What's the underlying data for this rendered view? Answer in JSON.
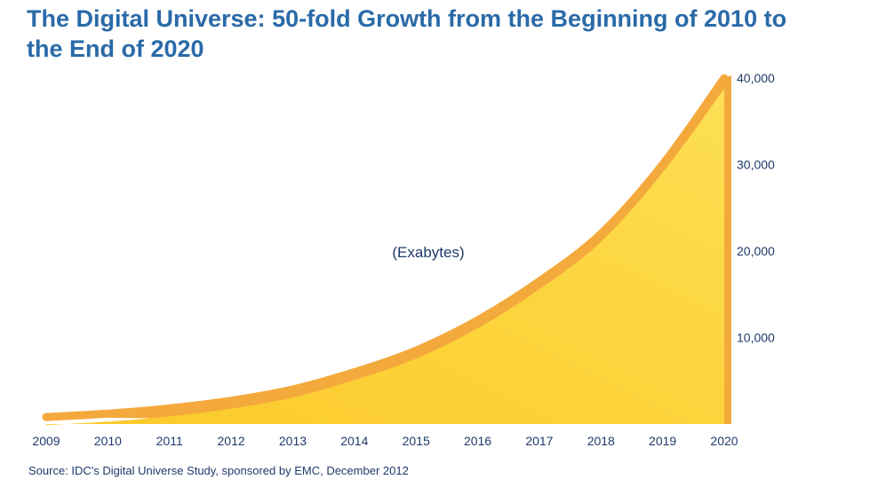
{
  "chart_data": {
    "type": "area",
    "title": "The Digital Universe: 50-fold Growth from the Beginning of 2010 to the End of 2020",
    "annotation": "(Exabytes)",
    "x": [
      2009,
      2010,
      2011,
      2012,
      2013,
      2014,
      2015,
      2016,
      2017,
      2018,
      2019,
      2020
    ],
    "x_tick_labels": [
      "2009",
      "2010",
      "2011",
      "2012",
      "2013",
      "2014",
      "2015",
      "2016",
      "2017",
      "2018",
      "2019",
      "2020"
    ],
    "y": [
      800,
      1200,
      1800,
      2700,
      4000,
      6000,
      8500,
      12000,
      16500,
      22000,
      30000,
      40000
    ],
    "ylim": [
      0,
      40000
    ],
    "y_ticks": [
      10000,
      20000,
      30000,
      40000
    ],
    "y_tick_labels": [
      "10,000",
      "20,000",
      "30,000",
      "40,000"
    ],
    "y_axis_side": "right",
    "grid": false,
    "fill_color": "#fcd23a",
    "edge_color": "#f4a93c",
    "source": "Source: IDC's Digital Universe Study, sponsored by EMC, December 2012"
  }
}
